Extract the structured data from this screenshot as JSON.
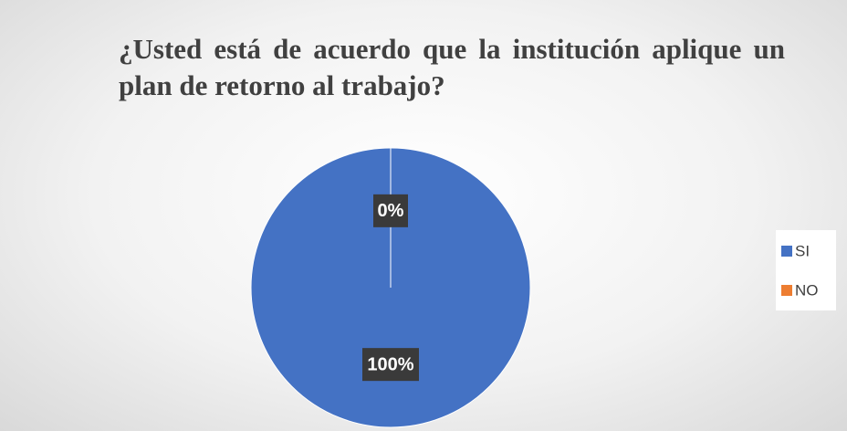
{
  "chart_data": {
    "type": "pie",
    "title": "¿Usted está de acuerdo que la institución aplique un plan de retorno al trabajo?",
    "categories": [
      "SI",
      "NO"
    ],
    "values": [
      100,
      0
    ],
    "value_labels": [
      "100%",
      "0%"
    ],
    "colors": [
      "#4472c4",
      "#ed7d31"
    ],
    "legend": "right"
  }
}
